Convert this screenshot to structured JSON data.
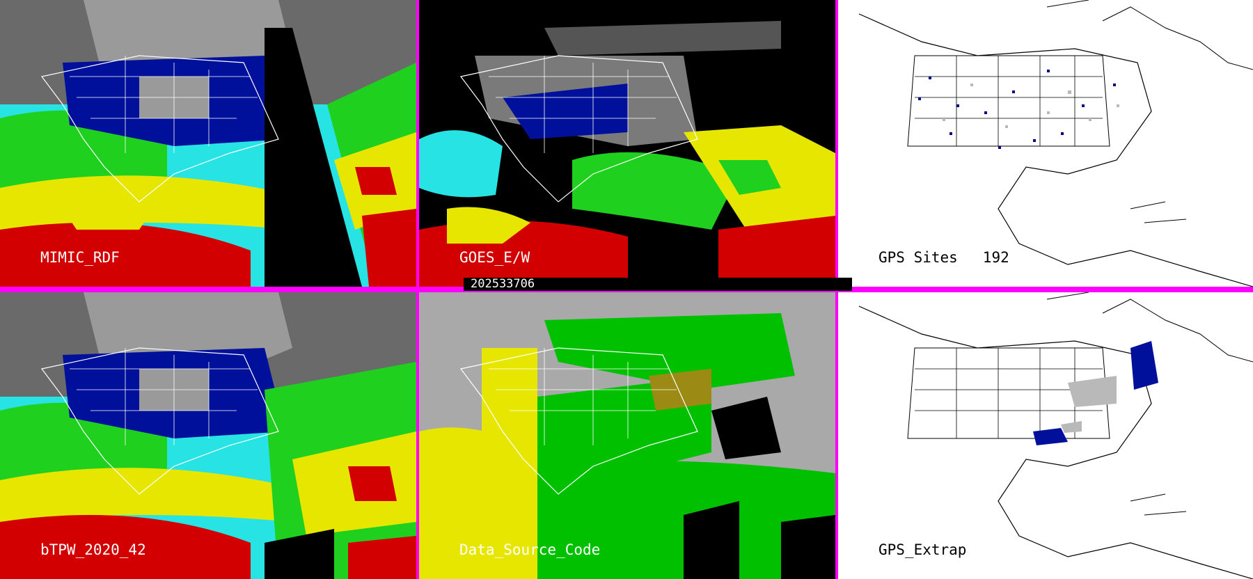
{
  "panels": {
    "p1": {
      "label": "MIMIC_RDF"
    },
    "p2": {
      "label": "GOES_E/W",
      "timestamp": "202533706"
    },
    "p3": {
      "label": "GPS Sites",
      "site_count": "192"
    },
    "p4": {
      "label": "bTPW_2020_42"
    },
    "p5": {
      "label": "Data_Source_Code"
    },
    "p6": {
      "label": "GPS_Extrap"
    }
  },
  "colors": {
    "border": "#ff00ff",
    "tpw_low": "#7f7f7f",
    "tpw_dark_blue": "#00109a",
    "tpw_cyan": "#27e3e3",
    "tpw_green": "#1fd01f",
    "tpw_yellow": "#e6e600",
    "tpw_red": "#d20000",
    "source_gray": "#a9a9a9",
    "source_green": "#00c000",
    "source_yellow": "#e6e600",
    "source_olive": "#9b8a14",
    "gps_site": "#000080"
  }
}
